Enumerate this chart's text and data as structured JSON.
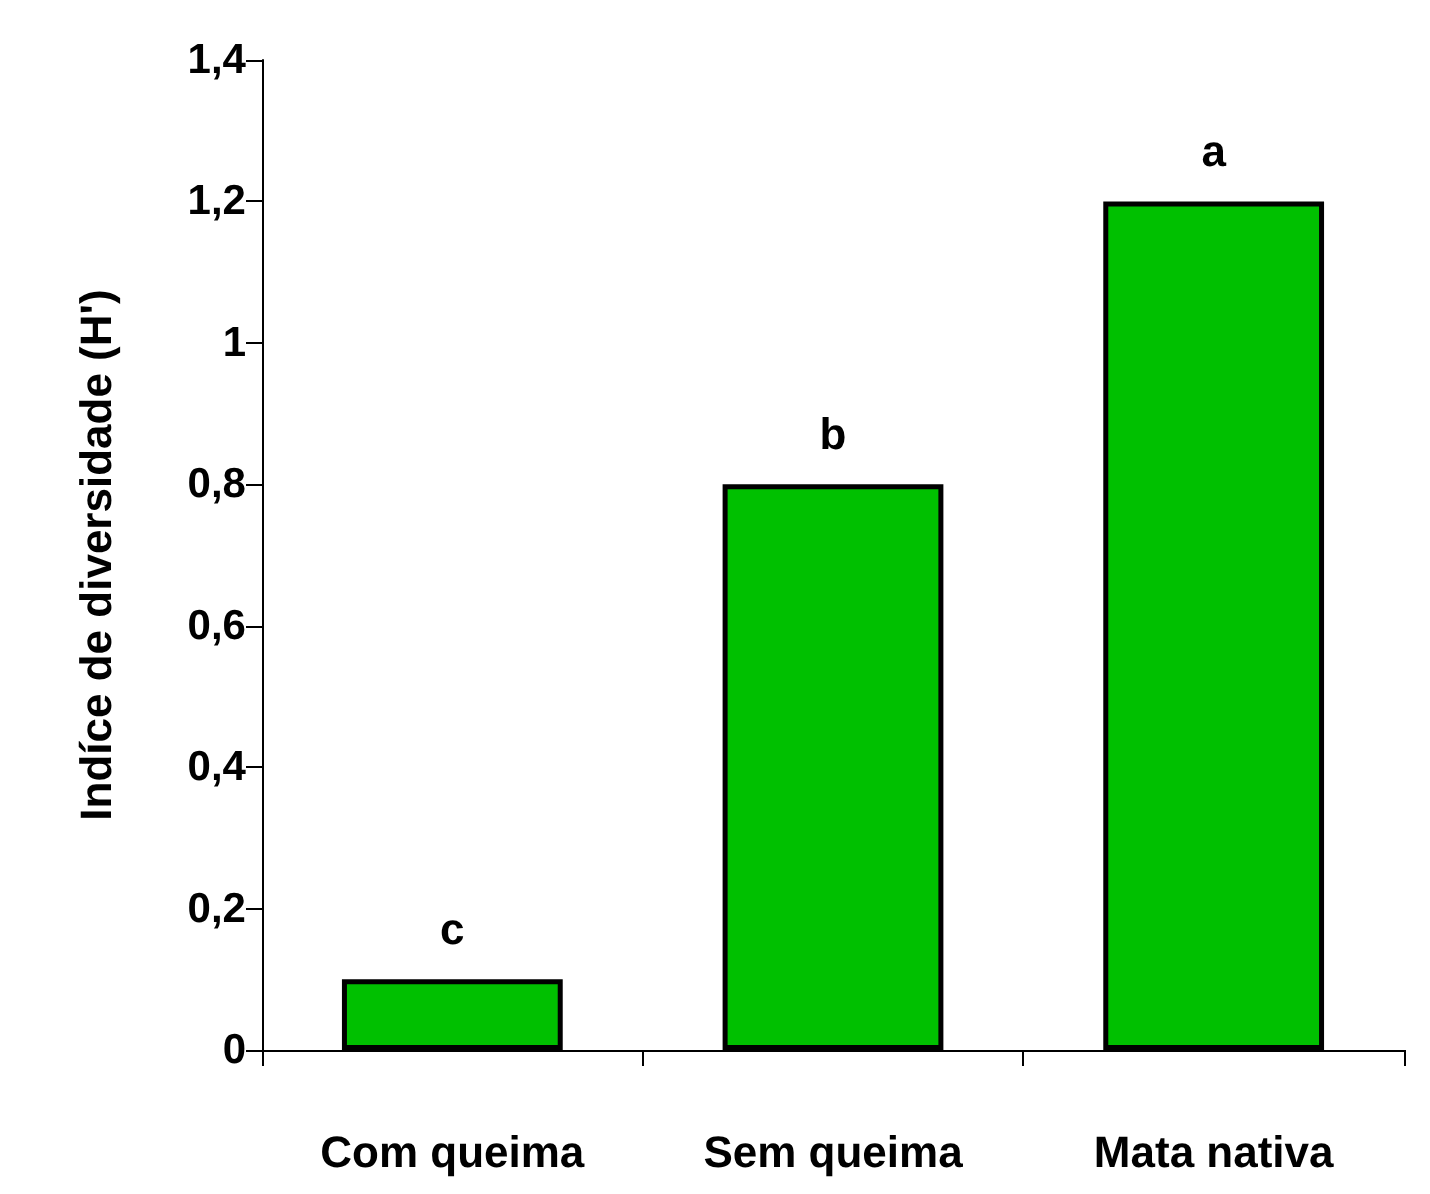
{
  "chart_data": {
    "type": "bar",
    "ylabel": "Indíce de diversidade (H')",
    "categories": [
      "Com queima",
      "Sem queima",
      "Mata nativa"
    ],
    "values": [
      0.1,
      0.8,
      1.2
    ],
    "color": "#00c000",
    "ylim": [
      0,
      1.4
    ],
    "yticks": [
      {
        "value": 0,
        "label": "0"
      },
      {
        "value": 0.2,
        "label": "0,2"
      },
      {
        "value": 0.4,
        "label": "0,4"
      },
      {
        "value": 0.6,
        "label": "0,6"
      },
      {
        "value": 0.8,
        "label": "0,8"
      },
      {
        "value": 1,
        "label": "1"
      },
      {
        "value": 1.2,
        "label": "1,2"
      },
      {
        "value": 1.4,
        "label": "1,4"
      }
    ],
    "annotations": [
      {
        "text": "c",
        "x": "Com queima",
        "y": 0.1
      },
      {
        "text": "b",
        "x": "Sem queima",
        "y": 0.8
      },
      {
        "text": "a",
        "x": "Mata nativa",
        "y": 1.2
      }
    ],
    "grid": false
  }
}
